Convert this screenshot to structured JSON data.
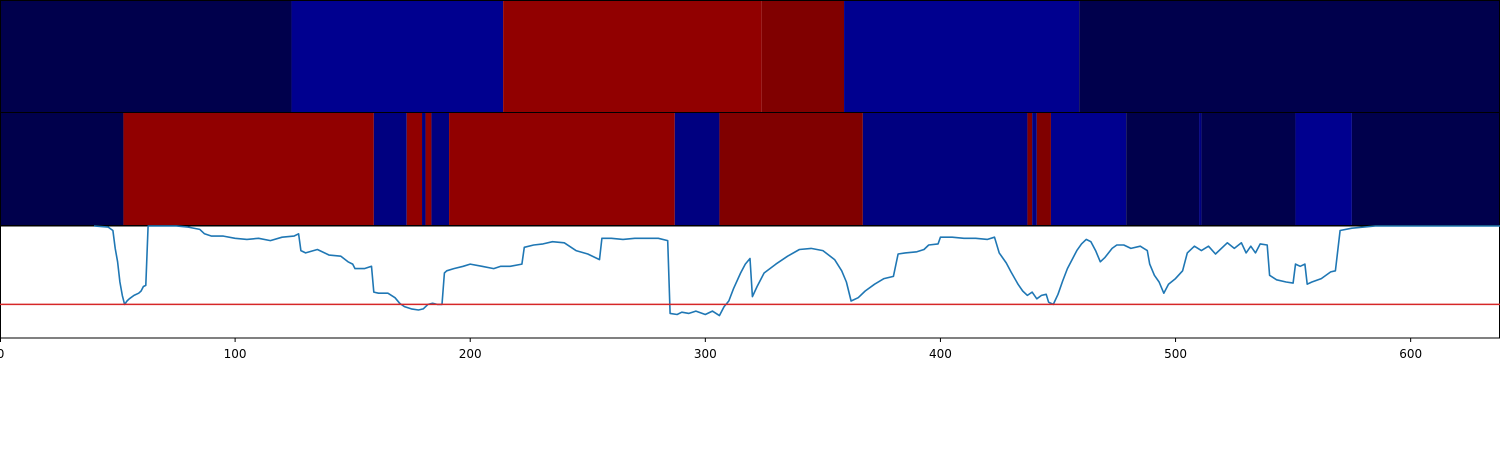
{
  "chart_data": {
    "type": "heatmap",
    "title": "",
    "xlabel": "",
    "ylabel": "",
    "xlim": [
      0,
      638
    ],
    "x_ticks": [
      0,
      100,
      200,
      300,
      400,
      500,
      600
    ],
    "x_tick_labels": [
      "0",
      "100",
      "200",
      "300",
      "400",
      "500",
      "600"
    ],
    "colors": {
      "navy_dark": "#00004c",
      "navy": "#000080",
      "blue": "#00008f",
      "red": "#910000",
      "maroon": "#800000",
      "line": "#1f77b4",
      "threshold": "#d62728"
    },
    "segment_rows": [
      {
        "name": "row-1",
        "segments": [
          {
            "start": 0,
            "end": 124,
            "color": "navy_dark"
          },
          {
            "start": 124,
            "end": 214,
            "color": "blue"
          },
          {
            "start": 214,
            "end": 324,
            "color": "red"
          },
          {
            "start": 324,
            "end": 359,
            "color": "maroon"
          },
          {
            "start": 359,
            "end": 459,
            "color": "blue"
          },
          {
            "start": 459,
            "end": 638,
            "color": "navy_dark"
          }
        ]
      },
      {
        "name": "row-2",
        "segments": [
          {
            "start": 0,
            "end": 52.5,
            "color": "navy_dark"
          },
          {
            "start": 52.5,
            "end": 159,
            "color": "red"
          },
          {
            "start": 159,
            "end": 173,
            "color": "navy"
          },
          {
            "start": 173,
            "end": 179.5,
            "color": "red"
          },
          {
            "start": 179.5,
            "end": 181,
            "color": "navy"
          },
          {
            "start": 181,
            "end": 183.5,
            "color": "red"
          },
          {
            "start": 183.5,
            "end": 191,
            "color": "navy"
          },
          {
            "start": 191,
            "end": 287,
            "color": "red"
          },
          {
            "start": 287,
            "end": 306,
            "color": "navy"
          },
          {
            "start": 306,
            "end": 367,
            "color": "maroon"
          },
          {
            "start": 367,
            "end": 437,
            "color": "navy"
          },
          {
            "start": 437,
            "end": 439,
            "color": "maroon"
          },
          {
            "start": 439,
            "end": 441,
            "color": "navy"
          },
          {
            "start": 441,
            "end": 447,
            "color": "maroon"
          },
          {
            "start": 447,
            "end": 479,
            "color": "blue"
          },
          {
            "start": 479,
            "end": 510,
            "color": "navy_dark"
          },
          {
            "start": 510,
            "end": 511,
            "color": "navy"
          },
          {
            "start": 511,
            "end": 551,
            "color": "navy_dark"
          },
          {
            "start": 551,
            "end": 575,
            "color": "blue"
          },
          {
            "start": 575,
            "end": 638,
            "color": "navy_dark"
          }
        ]
      }
    ],
    "line_series": {
      "name": "signal",
      "ylim": [
        0,
        1
      ],
      "threshold": 0.3,
      "points": [
        [
          40,
          1.0
        ],
        [
          46,
          0.99
        ],
        [
          48,
          0.96
        ],
        [
          49,
          0.8
        ],
        [
          50,
          0.68
        ],
        [
          51,
          0.5
        ],
        [
          52,
          0.38
        ],
        [
          53,
          0.3
        ],
        [
          54,
          0.33
        ],
        [
          55,
          0.35
        ],
        [
          57,
          0.38
        ],
        [
          59,
          0.4
        ],
        [
          60,
          0.42
        ],
        [
          61,
          0.46
        ],
        [
          62,
          0.47
        ],
        [
          63,
          1.0
        ],
        [
          70,
          1.0
        ],
        [
          75,
          1.0
        ],
        [
          80,
          0.99
        ],
        [
          85,
          0.97
        ],
        [
          87,
          0.93
        ],
        [
          90,
          0.91
        ],
        [
          95,
          0.91
        ],
        [
          100,
          0.89
        ],
        [
          105,
          0.88
        ],
        [
          110,
          0.89
        ],
        [
          115,
          0.87
        ],
        [
          120,
          0.9
        ],
        [
          125,
          0.91
        ],
        [
          127,
          0.93
        ],
        [
          128,
          0.78
        ],
        [
          130,
          0.76
        ],
        [
          135,
          0.79
        ],
        [
          140,
          0.74
        ],
        [
          145,
          0.73
        ],
        [
          148,
          0.68
        ],
        [
          150,
          0.66
        ],
        [
          151,
          0.62
        ],
        [
          155,
          0.62
        ],
        [
          158,
          0.64
        ],
        [
          159,
          0.41
        ],
        [
          161,
          0.4
        ],
        [
          165,
          0.4
        ],
        [
          168,
          0.36
        ],
        [
          170,
          0.31
        ],
        [
          172,
          0.28
        ],
        [
          175,
          0.26
        ],
        [
          178,
          0.25
        ],
        [
          180,
          0.26
        ],
        [
          182,
          0.3
        ],
        [
          184,
          0.31
        ],
        [
          186,
          0.3
        ],
        [
          188,
          0.3
        ],
        [
          189,
          0.58
        ],
        [
          190,
          0.6
        ],
        [
          193,
          0.62
        ],
        [
          197,
          0.64
        ],
        [
          200,
          0.66
        ],
        [
          205,
          0.64
        ],
        [
          210,
          0.62
        ],
        [
          213,
          0.64
        ],
        [
          217,
          0.64
        ],
        [
          222,
          0.66
        ],
        [
          223,
          0.81
        ],
        [
          227,
          0.83
        ],
        [
          231,
          0.84
        ],
        [
          235,
          0.86
        ],
        [
          240,
          0.85
        ],
        [
          245,
          0.78
        ],
        [
          250,
          0.75
        ],
        [
          255,
          0.7
        ],
        [
          256,
          0.89
        ],
        [
          260,
          0.89
        ],
        [
          265,
          0.88
        ],
        [
          270,
          0.89
        ],
        [
          275,
          0.89
        ],
        [
          280,
          0.89
        ],
        [
          284,
          0.87
        ],
        [
          285,
          0.22
        ],
        [
          288,
          0.21
        ],
        [
          290,
          0.23
        ],
        [
          293,
          0.22
        ],
        [
          296,
          0.24
        ],
        [
          300,
          0.21
        ],
        [
          303,
          0.24
        ],
        [
          306,
          0.2
        ],
        [
          308,
          0.28
        ],
        [
          310,
          0.33
        ],
        [
          312,
          0.44
        ],
        [
          315,
          0.58
        ],
        [
          317,
          0.66
        ],
        [
          319,
          0.71
        ],
        [
          320,
          0.37
        ],
        [
          322,
          0.46
        ],
        [
          325,
          0.58
        ],
        [
          330,
          0.66
        ],
        [
          335,
          0.73
        ],
        [
          340,
          0.79
        ],
        [
          345,
          0.8
        ],
        [
          350,
          0.78
        ],
        [
          355,
          0.7
        ],
        [
          358,
          0.6
        ],
        [
          360,
          0.5
        ],
        [
          362,
          0.33
        ],
        [
          365,
          0.36
        ],
        [
          368,
          0.42
        ],
        [
          372,
          0.48
        ],
        [
          376,
          0.53
        ],
        [
          380,
          0.55
        ],
        [
          382,
          0.75
        ],
        [
          385,
          0.76
        ],
        [
          390,
          0.77
        ],
        [
          393,
          0.79
        ],
        [
          395,
          0.83
        ],
        [
          399,
          0.84
        ],
        [
          400,
          0.9
        ],
        [
          405,
          0.9
        ],
        [
          410,
          0.89
        ],
        [
          415,
          0.89
        ],
        [
          420,
          0.88
        ],
        [
          423,
          0.9
        ],
        [
          425,
          0.76
        ],
        [
          428,
          0.67
        ],
        [
          430,
          0.59
        ],
        [
          433,
          0.48
        ],
        [
          435,
          0.42
        ],
        [
          437,
          0.38
        ],
        [
          439,
          0.41
        ],
        [
          441,
          0.35
        ],
        [
          443,
          0.38
        ],
        [
          445,
          0.39
        ],
        [
          446,
          0.32
        ],
        [
          448,
          0.3
        ],
        [
          450,
          0.39
        ],
        [
          452,
          0.51
        ],
        [
          454,
          0.62
        ],
        [
          456,
          0.7
        ],
        [
          458,
          0.78
        ],
        [
          460,
          0.84
        ],
        [
          462,
          0.88
        ],
        [
          464,
          0.86
        ],
        [
          466,
          0.78
        ],
        [
          468,
          0.68
        ],
        [
          470,
          0.72
        ],
        [
          473,
          0.8
        ],
        [
          475,
          0.83
        ],
        [
          478,
          0.83
        ],
        [
          481,
          0.8
        ],
        [
          485,
          0.82
        ],
        [
          488,
          0.78
        ],
        [
          489,
          0.66
        ],
        [
          491,
          0.56
        ],
        [
          493,
          0.5
        ],
        [
          495,
          0.4
        ],
        [
          497,
          0.48
        ],
        [
          500,
          0.53
        ],
        [
          503,
          0.6
        ],
        [
          505,
          0.76
        ],
        [
          508,
          0.82
        ],
        [
          511,
          0.78
        ],
        [
          514,
          0.82
        ],
        [
          517,
          0.75
        ],
        [
          522,
          0.85
        ],
        [
          525,
          0.8
        ],
        [
          528,
          0.85
        ],
        [
          530,
          0.76
        ],
        [
          532,
          0.82
        ],
        [
          534,
          0.76
        ],
        [
          536,
          0.84
        ],
        [
          539,
          0.83
        ],
        [
          540,
          0.56
        ],
        [
          543,
          0.52
        ],
        [
          547,
          0.5
        ],
        [
          550,
          0.49
        ],
        [
          551,
          0.66
        ],
        [
          553,
          0.64
        ],
        [
          555,
          0.66
        ],
        [
          556,
          0.48
        ],
        [
          558,
          0.5
        ],
        [
          562,
          0.53
        ],
        [
          566,
          0.59
        ],
        [
          568,
          0.6
        ],
        [
          570,
          0.96
        ],
        [
          575,
          0.98
        ],
        [
          585,
          1.0
        ],
        [
          595,
          1.0
        ],
        [
          610,
          1.0
        ],
        [
          638,
          1.0
        ]
      ]
    }
  }
}
